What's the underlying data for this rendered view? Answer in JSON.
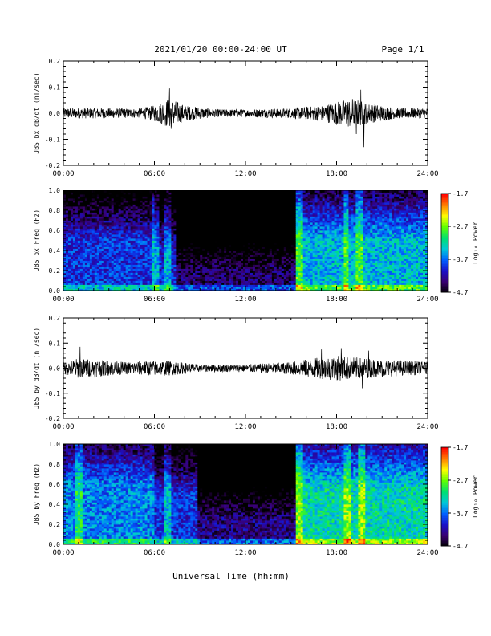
{
  "header": {
    "title": "2021/01/20  00:00-24:00 UT",
    "page": "Page 1/1"
  },
  "footer": {
    "xlabel": "Universal Time (hh:mm)"
  },
  "colorbar": {
    "label": "Log₁₀ Power",
    "ticks": [
      "-1.7",
      "-2.7",
      "-3.7",
      "-4.7"
    ],
    "range": [
      -4.7,
      -1.7
    ],
    "colormap": [
      "#000000",
      "#3a0070",
      "#1a10c8",
      "#0060ff",
      "#00c8d8",
      "#00e070",
      "#60ff00",
      "#ffff00",
      "#ff8000",
      "#ff0000"
    ]
  },
  "chart_data": [
    {
      "type": "line",
      "ylabel": "JBS bx dB/dt (nT/sec)",
      "xlim": [
        0,
        24
      ],
      "ylim": [
        -0.2,
        0.2
      ],
      "x_ticks": [
        "00:00",
        "06:00",
        "12:00",
        "18:00",
        "24:00"
      ],
      "y_ticks": [
        "0.2",
        "0.1",
        "0.0",
        "-0.1",
        "-0.2"
      ],
      "color": "#000000",
      "envelope": [
        {
          "x": 0,
          "amp": 0.02
        },
        {
          "x": 2,
          "amp": 0.02
        },
        {
          "x": 5,
          "amp": 0.018
        },
        {
          "x": 6,
          "amp": 0.03
        },
        {
          "x": 7,
          "amp": 0.06
        },
        {
          "x": 8,
          "amp": 0.03
        },
        {
          "x": 10,
          "amp": 0.015
        },
        {
          "x": 12,
          "amp": 0.015
        },
        {
          "x": 15,
          "amp": 0.02
        },
        {
          "x": 17,
          "amp": 0.03
        },
        {
          "x": 19,
          "amp": 0.06
        },
        {
          "x": 20,
          "amp": 0.04
        },
        {
          "x": 22,
          "amp": 0.02
        },
        {
          "x": 24,
          "amp": 0.02
        }
      ],
      "spikes": [
        {
          "x": 7.0,
          "y": 0.095
        },
        {
          "x": 7.1,
          "y": -0.06
        },
        {
          "x": 19.6,
          "y": 0.09
        },
        {
          "x": 19.8,
          "y": -0.13
        },
        {
          "x": 19.3,
          "y": -0.08
        }
      ]
    },
    {
      "type": "heatmap",
      "ylabel": "JBS bx Freq (Hz)",
      "xlim": [
        0,
        24
      ],
      "ylim": [
        0,
        1.0
      ],
      "x_ticks": [
        "00:00",
        "06:00",
        "12:00",
        "18:00",
        "24:00"
      ],
      "y_ticks": [
        "1.0",
        "0.8",
        "0.6",
        "0.4",
        "0.2",
        "0.0"
      ],
      "zlim": [
        -4.7,
        -1.7
      ],
      "bright_bands": [
        {
          "x": 6.1,
          "width": 0.2
        },
        {
          "x": 6.9,
          "width": 0.3
        },
        {
          "x": 15.5,
          "width": 0.3
        },
        {
          "x": 18.6,
          "width": 0.2
        },
        {
          "x": 19.5,
          "width": 0.3
        }
      ],
      "active_regions": [
        {
          "x0": 0,
          "x1": 6,
          "level": -3.9,
          "fmax": 0.5
        },
        {
          "x0": 6,
          "x1": 7.5,
          "level": -4.0,
          "fmax": 0.4
        },
        {
          "x0": 7.5,
          "x1": 15.3,
          "level": -4.4,
          "fmax": 0.2
        },
        {
          "x0": 15.3,
          "x1": 24,
          "level": -3.4,
          "fmax": 0.5
        }
      ]
    },
    {
      "type": "line",
      "ylabel": "JBS by dB/dt (nT/sec)",
      "xlim": [
        0,
        24
      ],
      "ylim": [
        -0.2,
        0.2
      ],
      "x_ticks": [
        "00:00",
        "06:00",
        "12:00",
        "18:00",
        "24:00"
      ],
      "y_ticks": [
        "0.2",
        "0.1",
        "0.0",
        "-0.1",
        "-0.2"
      ],
      "color": "#000000",
      "envelope": [
        {
          "x": 0,
          "amp": 0.025
        },
        {
          "x": 1,
          "amp": 0.04
        },
        {
          "x": 2,
          "amp": 0.035
        },
        {
          "x": 4,
          "amp": 0.025
        },
        {
          "x": 6,
          "amp": 0.03
        },
        {
          "x": 7,
          "amp": 0.03
        },
        {
          "x": 9,
          "amp": 0.015
        },
        {
          "x": 12,
          "amp": 0.015
        },
        {
          "x": 15,
          "amp": 0.025
        },
        {
          "x": 16.5,
          "amp": 0.04
        },
        {
          "x": 18,
          "amp": 0.05
        },
        {
          "x": 19,
          "amp": 0.045
        },
        {
          "x": 21,
          "amp": 0.035
        },
        {
          "x": 24,
          "amp": 0.025
        }
      ],
      "spikes": [
        {
          "x": 1.1,
          "y": 0.085
        },
        {
          "x": 17.0,
          "y": 0.075
        },
        {
          "x": 18.3,
          "y": 0.08
        },
        {
          "x": 19.7,
          "y": -0.08
        },
        {
          "x": 20.1,
          "y": 0.07
        }
      ]
    },
    {
      "type": "heatmap",
      "ylabel": "JBS by Freq (Hz)",
      "xlim": [
        0,
        24
      ],
      "ylim": [
        0,
        1.0
      ],
      "x_ticks": [
        "00:00",
        "06:00",
        "12:00",
        "18:00",
        "24:00"
      ],
      "y_ticks": [
        "1.0",
        "0.8",
        "0.6",
        "0.4",
        "0.2",
        "0.0"
      ],
      "zlim": [
        -4.7,
        -1.7
      ],
      "bright_bands": [
        {
          "x": 1.0,
          "width": 0.3
        },
        {
          "x": 6.9,
          "width": 0.3
        },
        {
          "x": 15.6,
          "width": 0.3
        },
        {
          "x": 18.7,
          "width": 0.2
        },
        {
          "x": 19.6,
          "width": 0.3
        }
      ],
      "active_regions": [
        {
          "x0": 0,
          "x1": 6,
          "level": -3.6,
          "fmax": 0.6
        },
        {
          "x0": 6,
          "x1": 8.8,
          "level": -3.9,
          "fmax": 0.5
        },
        {
          "x0": 8.8,
          "x1": 15.3,
          "level": -4.3,
          "fmax": 0.25
        },
        {
          "x0": 15.3,
          "x1": 24,
          "level": -3.2,
          "fmax": 0.55
        }
      ]
    }
  ]
}
